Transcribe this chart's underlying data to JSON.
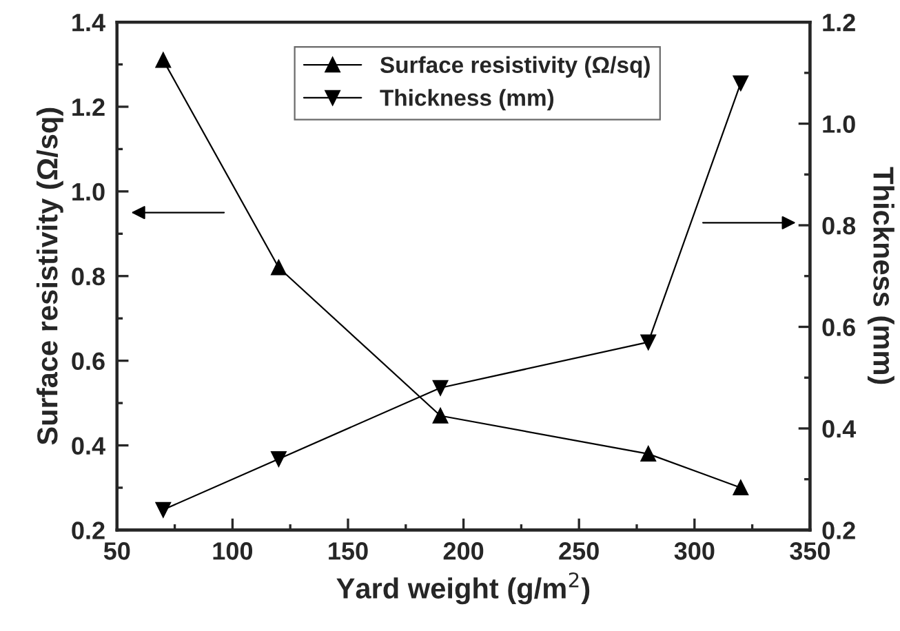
{
  "chart_data": {
    "type": "line",
    "xlabel": "Yard weight (g/m$^{2}$)",
    "ylabel": "Surface resistivity (Ω/sq)",
    "y2label": "Thickness (mm)",
    "x": [
      70,
      120,
      190,
      280,
      320
    ],
    "series": [
      {
        "name": "Surface resistivity (Ω/sq)",
        "color": "#000000",
        "marker": "triangle",
        "values": [
          1.31,
          0.82,
          0.47,
          0.38,
          0.3
        ]
      },
      {
        "name": "Thickness (mm)",
        "color": "#000000",
        "marker": "triangle_down",
        "axis": "y2",
        "values": [
          0.24,
          0.34,
          0.48,
          0.57,
          1.08
        ]
      }
    ],
    "xlim": [
      50,
      350
    ],
    "xticks": [
      50,
      100,
      150,
      200,
      250,
      300,
      350
    ],
    "ylim": [
      0.2,
      1.4
    ],
    "yticks": [
      0.2,
      0.4,
      0.6,
      0.8,
      {
        "value": 1,
        "label": "1.0"
      },
      1.2,
      1.4
    ],
    "y2lim": [
      0.2,
      1.2
    ],
    "y2ticks": [
      0.2,
      0.4,
      0.6,
      0.8,
      {
        "value": 1,
        "label": "1.0"
      },
      1.2
    ],
    "legend": "top",
    "grid": false,
    "line_style": "solid"
  }
}
